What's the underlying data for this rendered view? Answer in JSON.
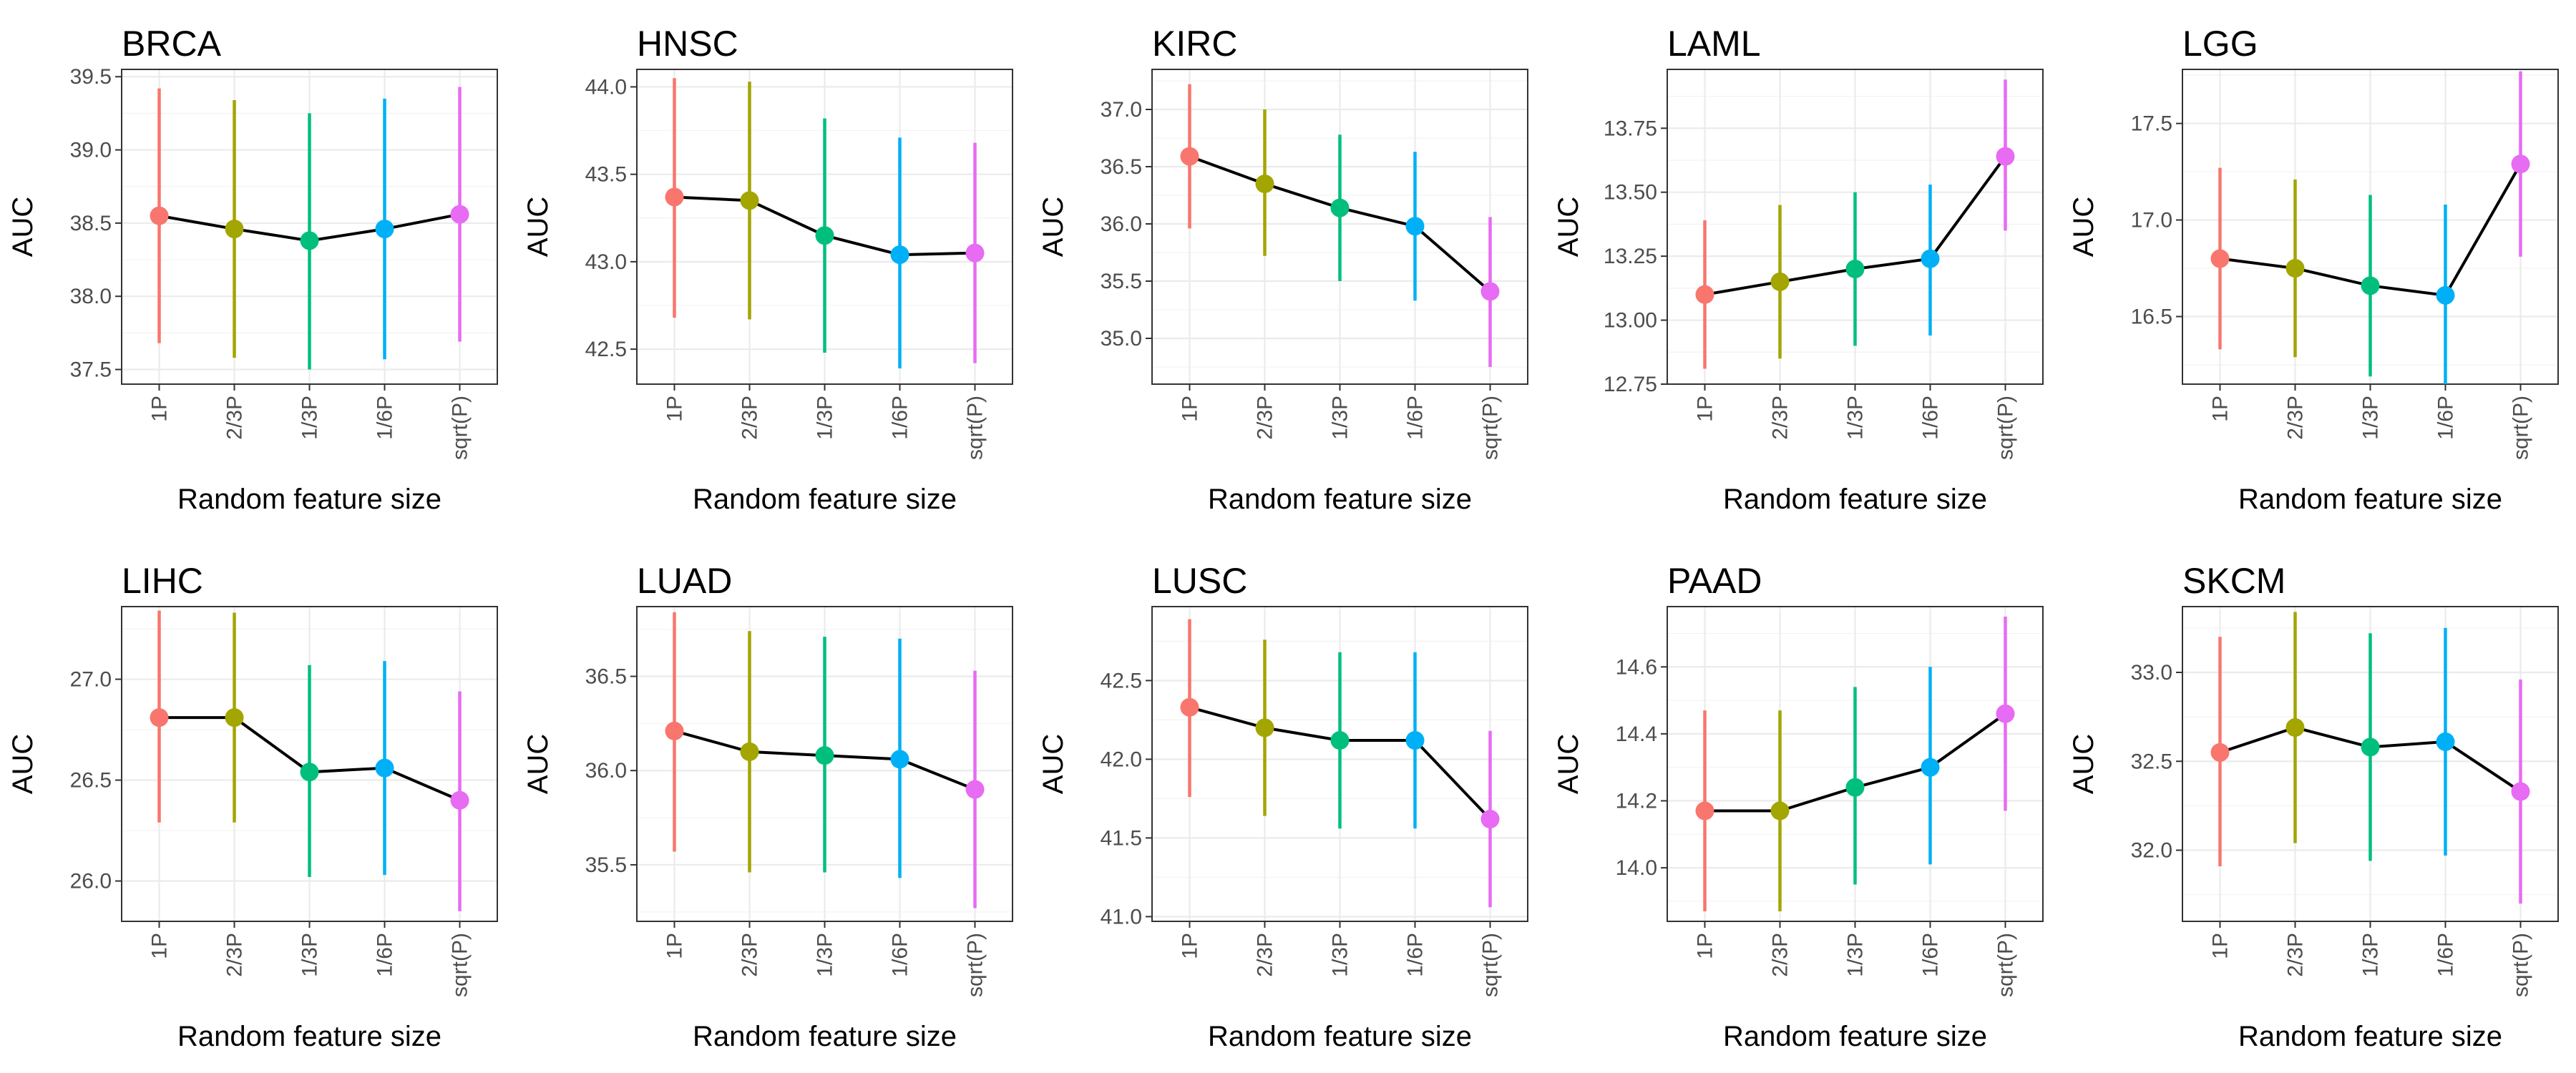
{
  "chart_data": {
    "type": "line",
    "layout": "2x5 facets",
    "x_label": "Random feature size",
    "y_label": "AUC",
    "categories": [
      "1P",
      "2/3P",
      "1/3P",
      "1/6P",
      "sqrt(P)"
    ],
    "category_colors": [
      "#F8766D",
      "#A3A500",
      "#00BF7D",
      "#00B0F6",
      "#E76BF3"
    ],
    "grid": true,
    "legend": "none",
    "panels": [
      {
        "title": "BRCA",
        "ylim": [
          37.4,
          39.55
        ],
        "yticks": [
          37.5,
          38.0,
          38.5,
          39.0,
          39.5
        ],
        "tick_labels": [
          "37.5",
          "38.0",
          "38.5",
          "39.0",
          "39.5"
        ],
        "mean": [
          38.55,
          38.46,
          38.38,
          38.46,
          38.56
        ],
        "lower": [
          37.68,
          37.58,
          37.5,
          37.57,
          37.69
        ],
        "upper": [
          39.42,
          39.34,
          39.25,
          39.35,
          39.43
        ]
      },
      {
        "title": "HNSC",
        "ylim": [
          42.3,
          44.1
        ],
        "yticks": [
          42.5,
          43.0,
          43.5,
          44.0
        ],
        "tick_labels": [
          "42.5",
          "43.0",
          "43.5",
          "44.0"
        ],
        "mean": [
          43.37,
          43.35,
          43.15,
          43.04,
          43.05
        ],
        "lower": [
          42.68,
          42.67,
          42.48,
          42.39,
          42.42
        ],
        "upper": [
          44.05,
          44.03,
          43.82,
          43.71,
          43.68
        ]
      },
      {
        "title": "KIRC",
        "ylim": [
          34.6,
          37.35
        ],
        "yticks": [
          35.0,
          35.5,
          36.0,
          36.5,
          37.0
        ],
        "tick_labels": [
          "35.0",
          "35.5",
          "36.0",
          "36.5",
          "37.0"
        ],
        "mean": [
          36.59,
          36.35,
          36.14,
          35.98,
          35.41
        ],
        "lower": [
          35.96,
          35.72,
          35.5,
          35.33,
          34.75
        ],
        "upper": [
          37.22,
          37.0,
          36.78,
          36.63,
          36.06
        ]
      },
      {
        "title": "LAML",
        "ylim": [
          12.75,
          13.98
        ],
        "yticks": [
          12.75,
          13.0,
          13.25,
          13.5,
          13.75
        ],
        "tick_labels": [
          "12.75",
          "13.00",
          "13.25",
          "13.50",
          "13.75"
        ],
        "mean": [
          13.1,
          13.15,
          13.2,
          13.24,
          13.64
        ],
        "lower": [
          12.81,
          12.85,
          12.9,
          12.94,
          13.35
        ],
        "upper": [
          13.39,
          13.45,
          13.5,
          13.53,
          13.94
        ]
      },
      {
        "title": "LGG",
        "ylim": [
          16.15,
          17.78
        ],
        "yticks": [
          16.5,
          17.0,
          17.5
        ],
        "tick_labels": [
          "16.5",
          "17.0",
          "17.5"
        ],
        "mean": [
          16.8,
          16.75,
          16.66,
          16.61,
          17.29
        ],
        "lower": [
          16.33,
          16.29,
          16.19,
          16.15,
          16.81
        ],
        "upper": [
          17.27,
          17.21,
          17.13,
          17.08,
          17.77
        ]
      },
      {
        "title": "LIHC",
        "ylim": [
          25.8,
          27.36
        ],
        "yticks": [
          26.0,
          26.5,
          27.0
        ],
        "tick_labels": [
          "26.0",
          "26.5",
          "27.0"
        ],
        "mean": [
          26.81,
          26.81,
          26.54,
          26.56,
          26.4
        ],
        "lower": [
          26.29,
          26.29,
          26.02,
          26.03,
          25.85
        ],
        "upper": [
          27.34,
          27.33,
          27.07,
          27.09,
          26.94
        ]
      },
      {
        "title": "LUAD",
        "ylim": [
          35.2,
          36.87
        ],
        "yticks": [
          35.5,
          36.0,
          36.5
        ],
        "tick_labels": [
          "35.5",
          "36.0",
          "36.5"
        ],
        "mean": [
          36.21,
          36.1,
          36.08,
          36.06,
          35.9
        ],
        "lower": [
          35.57,
          35.46,
          35.46,
          35.43,
          35.27
        ],
        "upper": [
          36.84,
          36.74,
          36.71,
          36.7,
          36.53
        ]
      },
      {
        "title": "LUSC",
        "ylim": [
          40.97,
          42.97
        ],
        "yticks": [
          41.0,
          41.5,
          42.0,
          42.5
        ],
        "tick_labels": [
          "41.0",
          "41.5",
          "42.0",
          "42.5"
        ],
        "mean": [
          42.33,
          42.2,
          42.12,
          42.12,
          41.62
        ],
        "lower": [
          41.76,
          41.64,
          41.56,
          41.56,
          41.06
        ],
        "upper": [
          42.89,
          42.76,
          42.68,
          42.68,
          42.18
        ]
      },
      {
        "title": "PAAD",
        "ylim": [
          13.84,
          14.78
        ],
        "yticks": [
          14.0,
          14.2,
          14.4,
          14.6
        ],
        "tick_labels": [
          "14.0",
          "14.2",
          "14.4",
          "14.6"
        ],
        "mean": [
          14.17,
          14.17,
          14.24,
          14.3,
          14.46
        ],
        "lower": [
          13.87,
          13.87,
          13.95,
          14.01,
          14.17
        ],
        "upper": [
          14.47,
          14.47,
          14.54,
          14.6,
          14.75
        ]
      },
      {
        "title": "SKCM",
        "ylim": [
          31.6,
          33.37
        ],
        "yticks": [
          32.0,
          32.5,
          33.0
        ],
        "tick_labels": [
          "32.0",
          "32.5",
          "33.0"
        ],
        "mean": [
          32.55,
          32.69,
          32.58,
          32.61,
          32.33
        ],
        "lower": [
          31.91,
          32.04,
          31.94,
          31.97,
          31.7
        ],
        "upper": [
          33.2,
          33.34,
          33.22,
          33.25,
          32.96
        ]
      }
    ]
  }
}
